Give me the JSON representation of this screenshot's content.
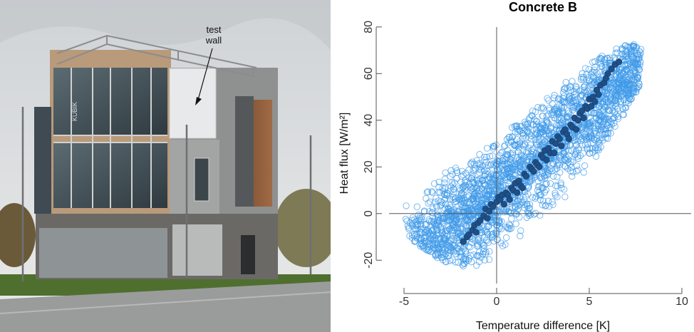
{
  "photo": {
    "annotation_line1": "test",
    "annotation_line2": "wall",
    "facade_sign": "KUBIK"
  },
  "chart_data": {
    "type": "scatter",
    "title": "Concrete B",
    "xlabel": "Temperature difference [K]",
    "ylabel": "Heat flux [W/m²]",
    "xlim": [
      -6,
      10.5
    ],
    "ylim": [
      -30,
      83
    ],
    "xticks": [
      -5,
      0,
      5,
      10
    ],
    "yticks": [
      -20,
      0,
      20,
      40,
      60,
      80
    ],
    "reference_lines": {
      "x": 0,
      "y": 0
    },
    "colors": {
      "open_series": "#3f9ae8",
      "filled_series": "#1f4f86",
      "axis": "#555555"
    },
    "series": [
      {
        "marker": "open-circle",
        "cloud_shape": {
          "band": [
            [
              -5.0,
              -8,
              5
            ],
            [
              -4.0,
              -15,
              10
            ],
            [
              -3.0,
              -20,
              18
            ],
            [
              -2.0,
              -23,
              22
            ],
            [
              -1.0,
              -23,
              26
            ],
            [
              0.0,
              -22,
              32
            ],
            [
              1.0,
              -18,
              38
            ],
            [
              2.0,
              -10,
              45
            ],
            [
              3.0,
              0,
              52
            ],
            [
              4.0,
              10,
              58
            ],
            [
              5.0,
              20,
              64
            ],
            [
              6.0,
              32,
              70
            ],
            [
              7.0,
              44,
              73
            ],
            [
              7.8,
              55,
              72
            ]
          ],
          "trend": {
            "slope": 7.0,
            "intercept": 10,
            "spread": 12
          },
          "point_count": 2400
        }
      },
      {
        "marker": "filled-circle",
        "points": [
          [
            -1.8,
            -12
          ],
          [
            -1.6,
            -10
          ],
          [
            -1.5,
            -9
          ],
          [
            -1.3,
            -7
          ],
          [
            -1.2,
            -5
          ],
          [
            -1.0,
            -4
          ],
          [
            -0.9,
            -3
          ],
          [
            -0.7,
            -1
          ],
          [
            -0.6,
            2
          ],
          [
            -0.4,
            1
          ],
          [
            -0.3,
            4
          ],
          [
            -0.2,
            3
          ],
          [
            0.0,
            5
          ],
          [
            0.1,
            7
          ],
          [
            0.2,
            6
          ],
          [
            0.3,
            8
          ],
          [
            0.5,
            9
          ],
          [
            0.6,
            8
          ],
          [
            0.8,
            11
          ],
          [
            0.9,
            10
          ],
          [
            1.0,
            13
          ],
          [
            1.2,
            14
          ],
          [
            1.3,
            12
          ],
          [
            1.5,
            17
          ],
          [
            1.6,
            16
          ],
          [
            1.8,
            20
          ],
          [
            1.9,
            19
          ],
          [
            2.1,
            22
          ],
          [
            2.2,
            21
          ],
          [
            2.4,
            25
          ],
          [
            2.5,
            24
          ],
          [
            2.6,
            27
          ],
          [
            2.8,
            28
          ],
          [
            2.9,
            26
          ],
          [
            3.0,
            31
          ],
          [
            3.2,
            30
          ],
          [
            3.3,
            33
          ],
          [
            3.4,
            32
          ],
          [
            3.6,
            35
          ],
          [
            3.7,
            36
          ],
          [
            3.8,
            34
          ],
          [
            4.0,
            38
          ],
          [
            4.1,
            37
          ],
          [
            4.2,
            41
          ],
          [
            4.4,
            40
          ],
          [
            4.5,
            43
          ],
          [
            4.6,
            44
          ],
          [
            4.8,
            46
          ],
          [
            4.9,
            45
          ],
          [
            5.0,
            49
          ],
          [
            5.2,
            50
          ],
          [
            5.3,
            48
          ],
          [
            5.4,
            53
          ],
          [
            5.6,
            55
          ],
          [
            5.8,
            56
          ],
          [
            6.0,
            60
          ],
          [
            6.2,
            62
          ],
          [
            6.4,
            64
          ],
          [
            0.7,
            6
          ],
          [
            1.1,
            9
          ],
          [
            2.0,
            18
          ],
          [
            2.7,
            23
          ],
          [
            3.5,
            29
          ],
          [
            4.3,
            36
          ],
          [
            -1.1,
            -8
          ],
          [
            -0.5,
            -2
          ],
          [
            0.4,
            4
          ],
          [
            1.4,
            11
          ],
          [
            2.3,
            20
          ],
          [
            3.1,
            26
          ],
          [
            3.9,
            32
          ],
          [
            4.7,
            41
          ],
          [
            5.1,
            46
          ],
          [
            5.5,
            51
          ],
          [
            5.9,
            58
          ],
          [
            6.6,
            65
          ]
        ]
      }
    ]
  }
}
